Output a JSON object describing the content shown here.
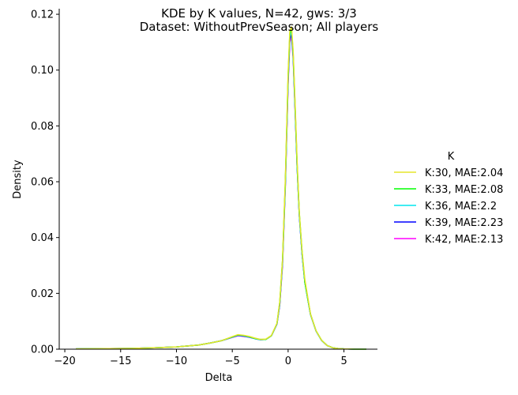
{
  "chart_data": {
    "type": "line",
    "title_line1": "KDE by K values, N=42, gws: 3/3",
    "title_line2": "Dataset: WithoutPrevSeason; All players",
    "xlabel": "Delta",
    "ylabel": "Density",
    "xlim": [
      -20.5,
      8
    ],
    "ylim": [
      0,
      0.122
    ],
    "xticks": [
      -20,
      -15,
      -10,
      -5,
      0,
      5
    ],
    "xtick_labels": [
      "−20",
      "−15",
      "−10",
      "−5",
      "0",
      "5"
    ],
    "yticks": [
      0.0,
      0.02,
      0.04,
      0.06,
      0.08,
      0.1,
      0.12
    ],
    "ytick_labels": [
      "0.00",
      "0.02",
      "0.04",
      "0.06",
      "0.08",
      "0.10",
      "0.12"
    ],
    "grid": false,
    "legend": {
      "title": "K",
      "placement": "right"
    },
    "series": [
      {
        "name": "K:42, MAE:2.13",
        "color": "#ff00ff",
        "x": [
          -19,
          -16,
          -14,
          -12,
          -10,
          -8,
          -7,
          -6,
          -5,
          -4.5,
          -4,
          -3.5,
          -3,
          -2.5,
          -2,
          -1.5,
          -1,
          -0.75,
          -0.5,
          -0.25,
          0,
          0.15,
          0.3,
          0.45,
          0.6,
          0.8,
          1,
          1.25,
          1.5,
          2,
          2.5,
          3,
          3.5,
          4,
          4.5,
          5,
          6,
          7
        ],
        "y": [
          0.0001,
          0.0002,
          0.0003,
          0.0005,
          0.0008,
          0.0015,
          0.0022,
          0.003,
          0.0042,
          0.0048,
          0.0046,
          0.0043,
          0.0038,
          0.0034,
          0.0035,
          0.0048,
          0.009,
          0.016,
          0.03,
          0.058,
          0.095,
          0.11,
          0.112,
          0.104,
          0.088,
          0.066,
          0.048,
          0.034,
          0.024,
          0.0125,
          0.0065,
          0.0031,
          0.0013,
          0.0005,
          0.0002,
          0.0001,
          0,
          0
        ]
      },
      {
        "name": "K:39, MAE:2.23",
        "color": "#0000ff",
        "x": [
          -19,
          -16,
          -14,
          -12,
          -10,
          -8,
          -7,
          -6,
          -5,
          -4.5,
          -4,
          -3.5,
          -3,
          -2.5,
          -2,
          -1.5,
          -1,
          -0.75,
          -0.5,
          -0.25,
          0,
          0.15,
          0.3,
          0.45,
          0.6,
          0.8,
          1,
          1.25,
          1.5,
          2,
          2.5,
          3,
          3.5,
          4,
          4.5,
          5,
          6,
          7
        ],
        "y": [
          0.0001,
          0.0002,
          0.0003,
          0.0005,
          0.0008,
          0.0015,
          0.0022,
          0.003,
          0.0043,
          0.0049,
          0.0047,
          0.0043,
          0.0038,
          0.0034,
          0.0035,
          0.0048,
          0.009,
          0.016,
          0.031,
          0.059,
          0.096,
          0.111,
          0.113,
          0.105,
          0.089,
          0.066,
          0.048,
          0.034,
          0.024,
          0.0125,
          0.0065,
          0.0031,
          0.0013,
          0.0005,
          0.0002,
          0.0001,
          0,
          0
        ]
      },
      {
        "name": "K:36, MAE:2.2",
        "color": "#00e5ee",
        "x": [
          -19,
          -16,
          -14,
          -12,
          -10,
          -8,
          -7,
          -6,
          -5,
          -4.5,
          -4,
          -3.5,
          -3,
          -2.5,
          -2,
          -1.5,
          -1,
          -0.75,
          -0.5,
          -0.25,
          0,
          0.15,
          0.3,
          0.45,
          0.6,
          0.8,
          1,
          1.25,
          1.5,
          2,
          2.5,
          3,
          3.5,
          4,
          4.5,
          5,
          6,
          7
        ],
        "y": [
          0.0001,
          0.0002,
          0.0003,
          0.0005,
          0.0008,
          0.0015,
          0.0022,
          0.003,
          0.0043,
          0.005,
          0.0048,
          0.0044,
          0.0038,
          0.0034,
          0.0035,
          0.0048,
          0.0091,
          0.0165,
          0.031,
          0.059,
          0.097,
          0.112,
          0.114,
          0.105,
          0.089,
          0.066,
          0.048,
          0.034,
          0.024,
          0.0125,
          0.0065,
          0.0031,
          0.0013,
          0.0005,
          0.0002,
          0.0001,
          0,
          0
        ]
      },
      {
        "name": "K:33, MAE:2.08",
        "color": "#00ff00",
        "x": [
          -19,
          -16,
          -14,
          -12,
          -10,
          -8,
          -7,
          -6,
          -5,
          -4.5,
          -4,
          -3.5,
          -3,
          -2.5,
          -2,
          -1.5,
          -1,
          -0.75,
          -0.5,
          -0.25,
          0,
          0.15,
          0.3,
          0.45,
          0.6,
          0.8,
          1,
          1.25,
          1.5,
          2,
          2.5,
          3,
          3.5,
          4,
          4.5,
          5,
          6,
          7
        ],
        "y": [
          0.0001,
          0.0002,
          0.0003,
          0.0005,
          0.0008,
          0.0015,
          0.0022,
          0.003,
          0.0044,
          0.0051,
          0.0049,
          0.0045,
          0.0039,
          0.0035,
          0.0035,
          0.0048,
          0.0092,
          0.0168,
          0.032,
          0.06,
          0.098,
          0.113,
          0.115,
          0.106,
          0.09,
          0.067,
          0.049,
          0.035,
          0.024,
          0.0126,
          0.0066,
          0.0032,
          0.0013,
          0.0005,
          0.0002,
          0.0001,
          0,
          0
        ]
      },
      {
        "name": "K:30, MAE:2.04",
        "color": "#e6e62a",
        "x": [
          -19,
          -16,
          -14,
          -12,
          -10,
          -8,
          -7,
          -6,
          -5,
          -4.5,
          -4,
          -3.5,
          -3,
          -2.5,
          -2,
          -1.5,
          -1,
          -0.75,
          -0.5,
          -0.25,
          0,
          0.15,
          0.3,
          0.45,
          0.6,
          0.8,
          1,
          1.25,
          1.5,
          2,
          2.5,
          3,
          3.5,
          4,
          4.5,
          5,
          6,
          7
        ],
        "y": [
          0.0001,
          0.0002,
          0.0003,
          0.0005,
          0.0008,
          0.0015,
          0.0022,
          0.003,
          0.0045,
          0.0052,
          0.005,
          0.0046,
          0.004,
          0.0035,
          0.0036,
          0.0049,
          0.0093,
          0.017,
          0.032,
          0.061,
          0.099,
          0.114,
          0.1155,
          0.107,
          0.091,
          0.068,
          0.049,
          0.035,
          0.025,
          0.0127,
          0.0066,
          0.0032,
          0.0013,
          0.0005,
          0.0002,
          0.0001,
          0,
          0
        ]
      }
    ],
    "legend_order": [
      "K:30, MAE:2.04",
      "K:33, MAE:2.08",
      "K:36, MAE:2.2",
      "K:39, MAE:2.23",
      "K:42, MAE:2.13"
    ]
  }
}
